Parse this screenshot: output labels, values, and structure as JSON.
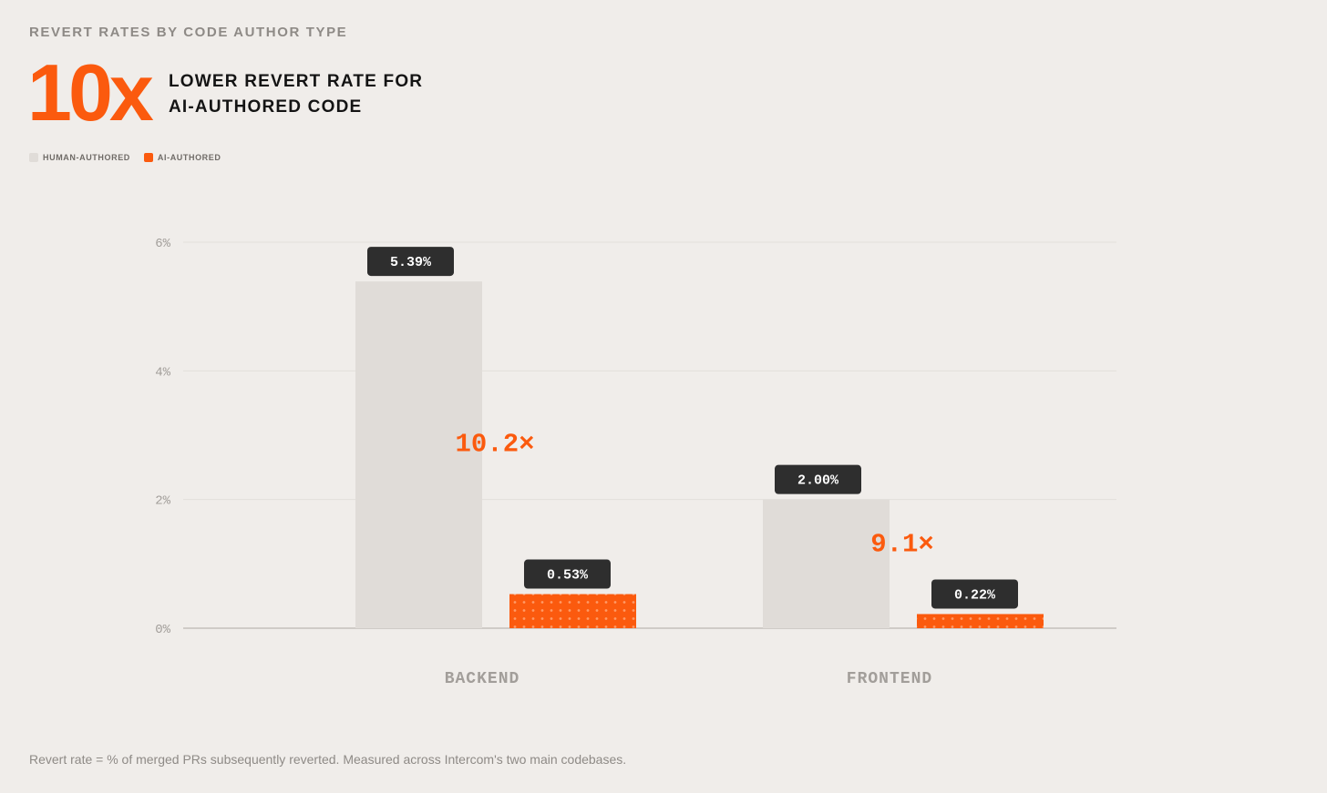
{
  "header": {
    "eyebrow": "REVERT RATES BY CODE AUTHOR TYPE",
    "big_number": "10x",
    "headline_line1": "LOWER REVERT RATE FOR",
    "headline_line2": "AI-AUTHORED CODE"
  },
  "legend": {
    "human_label": "HUMAN-AUTHORED",
    "ai_label": "AI-AUTHORED"
  },
  "colors": {
    "background": "#f0edea",
    "human": "#e0dcd8",
    "ai": "#fb5a0e",
    "accent_text": "#fb5a0e",
    "label_box": "#2e2e2e",
    "gridline": "#e2dfdb",
    "axis_text": "#a29e9a"
  },
  "chart_data": {
    "type": "bar",
    "title": "REVERT RATES BY CODE AUTHOR TYPE",
    "xlabel": "",
    "ylabel": "",
    "ylim": [
      0,
      6
    ],
    "yticks": [
      0,
      2,
      4,
      6
    ],
    "ytick_labels": [
      "0%",
      "2%",
      "4%",
      "6%"
    ],
    "categories": [
      "BACKEND",
      "FRONTEND"
    ],
    "series": [
      {
        "name": "HUMAN-AUTHORED",
        "values": [
          5.39,
          2.0
        ],
        "labels": [
          "5.39%",
          "2.00%"
        ]
      },
      {
        "name": "AI-AUTHORED",
        "values": [
          0.53,
          0.22
        ],
        "labels": [
          "0.53%",
          "0.22%"
        ]
      }
    ],
    "ratios": [
      "10.2×",
      "9.1×"
    ],
    "legend_position": "top-left",
    "grid": true
  },
  "footnote": "Revert rate = % of merged PRs subsequently reverted. Measured across Intercom's two main codebases."
}
